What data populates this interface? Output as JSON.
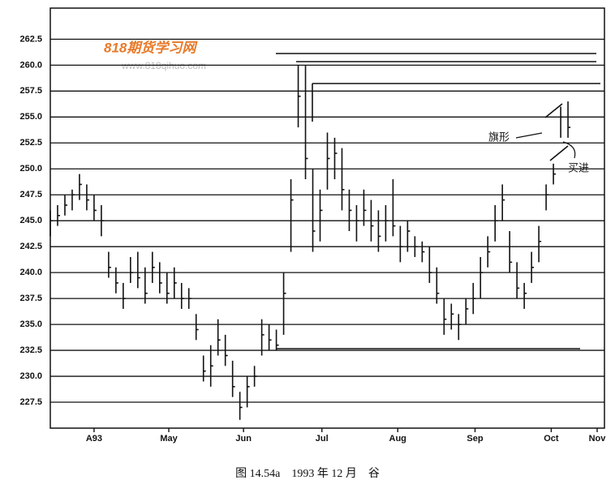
{
  "chart_data": {
    "type": "ohlc",
    "caption": "图 14.54a　1993 年 12 月　谷",
    "watermark": "818期货学习网",
    "watermark_url": "www.818qihuo.com",
    "annotations": [
      "旗形",
      "买进"
    ],
    "xlim": [
      0,
      152
    ],
    "xticks": [
      {
        "value": 12,
        "label": "A93"
      },
      {
        "value": 32.5,
        "label": "May"
      },
      {
        "value": 53,
        "label": "Jun"
      },
      {
        "value": 74.5,
        "label": "Jul"
      },
      {
        "value": 95.3,
        "label": "Aug"
      },
      {
        "value": 116.5,
        "label": "Sep"
      },
      {
        "value": 137.4,
        "label": "Oct"
      },
      {
        "value": 150,
        "label": "Nov"
      }
    ],
    "ylim": [
      225,
      265.5
    ],
    "yticks": [
      227.5,
      {
        "value": 230,
        "label": "230.0"
      },
      232.5,
      {
        "value": 235,
        "label": "235.0"
      },
      237.5,
      {
        "value": 240,
        "label": "240.0"
      },
      242.5,
      {
        "value": 245,
        "label": "245.0"
      },
      247.5,
      {
        "value": 250,
        "label": "250.0"
      },
      252.5,
      {
        "value": 255,
        "label": "255.0"
      },
      257.5,
      {
        "value": 260,
        "label": "260.0"
      },
      262.5
    ],
    "grid": true,
    "color": "#111111",
    "x": [
      0,
      2,
      4,
      6,
      8,
      10,
      12,
      14,
      16,
      18,
      20,
      22,
      24,
      26,
      28,
      30,
      32,
      34,
      36,
      38,
      40,
      42,
      44,
      46,
      48,
      50,
      52,
      54,
      56,
      58,
      60,
      62,
      64,
      66,
      68,
      70,
      72,
      74,
      76,
      78,
      80,
      82,
      84,
      86,
      88,
      90,
      92,
      94,
      96,
      98,
      100,
      102,
      104,
      106,
      108,
      110,
      112,
      114,
      116,
      118,
      120,
      122,
      124,
      126,
      128,
      130,
      132,
      134,
      136,
      138,
      140,
      142
    ],
    "high": [
      246,
      246.5,
      247.5,
      248,
      249.5,
      248.5,
      247.5,
      246.5,
      242,
      240.5,
      239,
      241.5,
      242,
      240.5,
      242,
      241,
      240,
      240.5,
      239,
      238.5,
      236,
      232,
      233,
      235.5,
      234,
      231.5,
      228.5,
      230,
      231,
      235.5,
      235,
      234.5,
      240,
      249,
      260,
      260,
      250,
      248,
      253.5,
      253,
      252,
      248,
      246.5,
      248,
      247,
      246,
      246.5,
      249,
      244.5,
      245,
      243.5,
      243,
      242.5,
      240.5,
      237.5,
      237,
      236,
      237.5,
      239,
      241.5,
      243.5,
      246.5,
      248.5,
      244,
      241,
      239,
      242,
      244.5,
      248.5,
      250.5,
      256,
      256.5
    ],
    "low": [
      243.5,
      244.5,
      245.5,
      246,
      247,
      246,
      245,
      243.5,
      239.5,
      238,
      236.5,
      239,
      238.5,
      237,
      239,
      238,
      237,
      237.5,
      236.5,
      236.5,
      233.5,
      229.5,
      229,
      232,
      231,
      228,
      225.8,
      227,
      229,
      232,
      232.5,
      232.5,
      234,
      242,
      254,
      249,
      242,
      243,
      248,
      249,
      246,
      244,
      243,
      244.5,
      243,
      242,
      243,
      243.5,
      241,
      242,
      241.5,
      241,
      239,
      237,
      234,
      234.5,
      233.5,
      235,
      236,
      237.5,
      240.5,
      243,
      245,
      240,
      237.5,
      236.5,
      239,
      241,
      246,
      248.5,
      253,
      253
    ],
    "close": [
      245,
      245.5,
      246.5,
      247.5,
      248.5,
      247,
      246,
      245,
      240.5,
      239,
      237.5,
      240,
      239.5,
      238,
      240.5,
      239,
      238,
      239,
      237.5,
      237.5,
      234.5,
      230.5,
      231,
      233.5,
      232,
      229,
      227,
      229,
      230,
      234,
      233.5,
      233,
      238,
      247,
      257,
      251,
      244,
      246,
      251,
      251.5,
      248,
      246,
      245,
      246,
      244.5,
      243.5,
      245,
      244.5,
      242.5,
      244,
      242.5,
      242,
      240,
      238,
      235.5,
      236,
      235,
      236.5,
      237.5,
      240,
      242,
      245,
      247,
      241,
      238.5,
      238,
      240.5,
      243,
      247.5,
      249.5,
      255,
      254
    ]
  }
}
